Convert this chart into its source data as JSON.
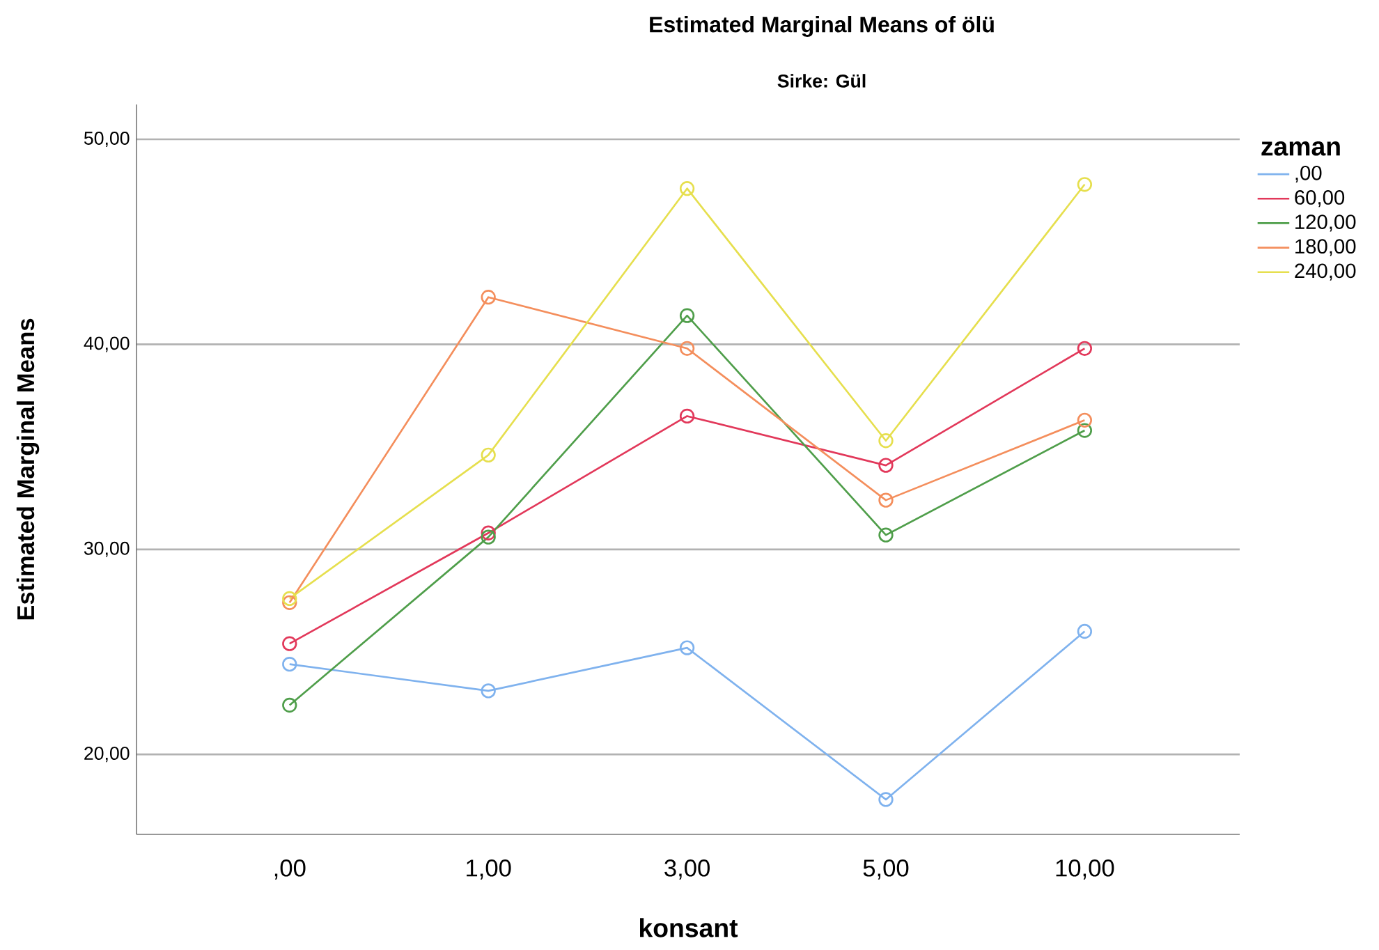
{
  "chart_data": {
    "type": "line",
    "title": "Estimated Marginal Means of ölü",
    "subtitle": "Sirke: Gül",
    "xlabel": "konsant",
    "ylabel": "Estimated Marginal Means",
    "legend_title": "zaman",
    "categories": [
      ",00",
      "1,00",
      "3,00",
      "5,00",
      "10,00"
    ],
    "series": [
      {
        "name": ",00",
        "color": "#7fb2ee",
        "values": [
          24.4,
          23.1,
          25.2,
          17.8,
          26.0
        ]
      },
      {
        "name": "60,00",
        "color": "#e2385a",
        "values": [
          25.4,
          30.8,
          36.5,
          34.1,
          39.8
        ]
      },
      {
        "name": "120,00",
        "color": "#4f9e4a",
        "values": [
          22.4,
          30.6,
          41.4,
          30.7,
          35.8
        ]
      },
      {
        "name": "180,00",
        "color": "#f48e5c",
        "values": [
          27.4,
          42.3,
          39.8,
          32.4,
          36.3
        ]
      },
      {
        "name": "240,00",
        "color": "#e6df4e",
        "values": [
          27.6,
          34.6,
          47.6,
          35.3,
          47.8
        ]
      }
    ],
    "ylim": [
      16.1,
      51.7
    ],
    "yticks": [
      {
        "value": 20,
        "label": "20,00"
      },
      {
        "value": 30,
        "label": "30,00"
      },
      {
        "value": 40,
        "label": "40,00"
      },
      {
        "value": 50,
        "label": "50,00"
      }
    ],
    "grid": "y",
    "legend": "top right",
    "marker": "circle",
    "line_style": "solid"
  }
}
